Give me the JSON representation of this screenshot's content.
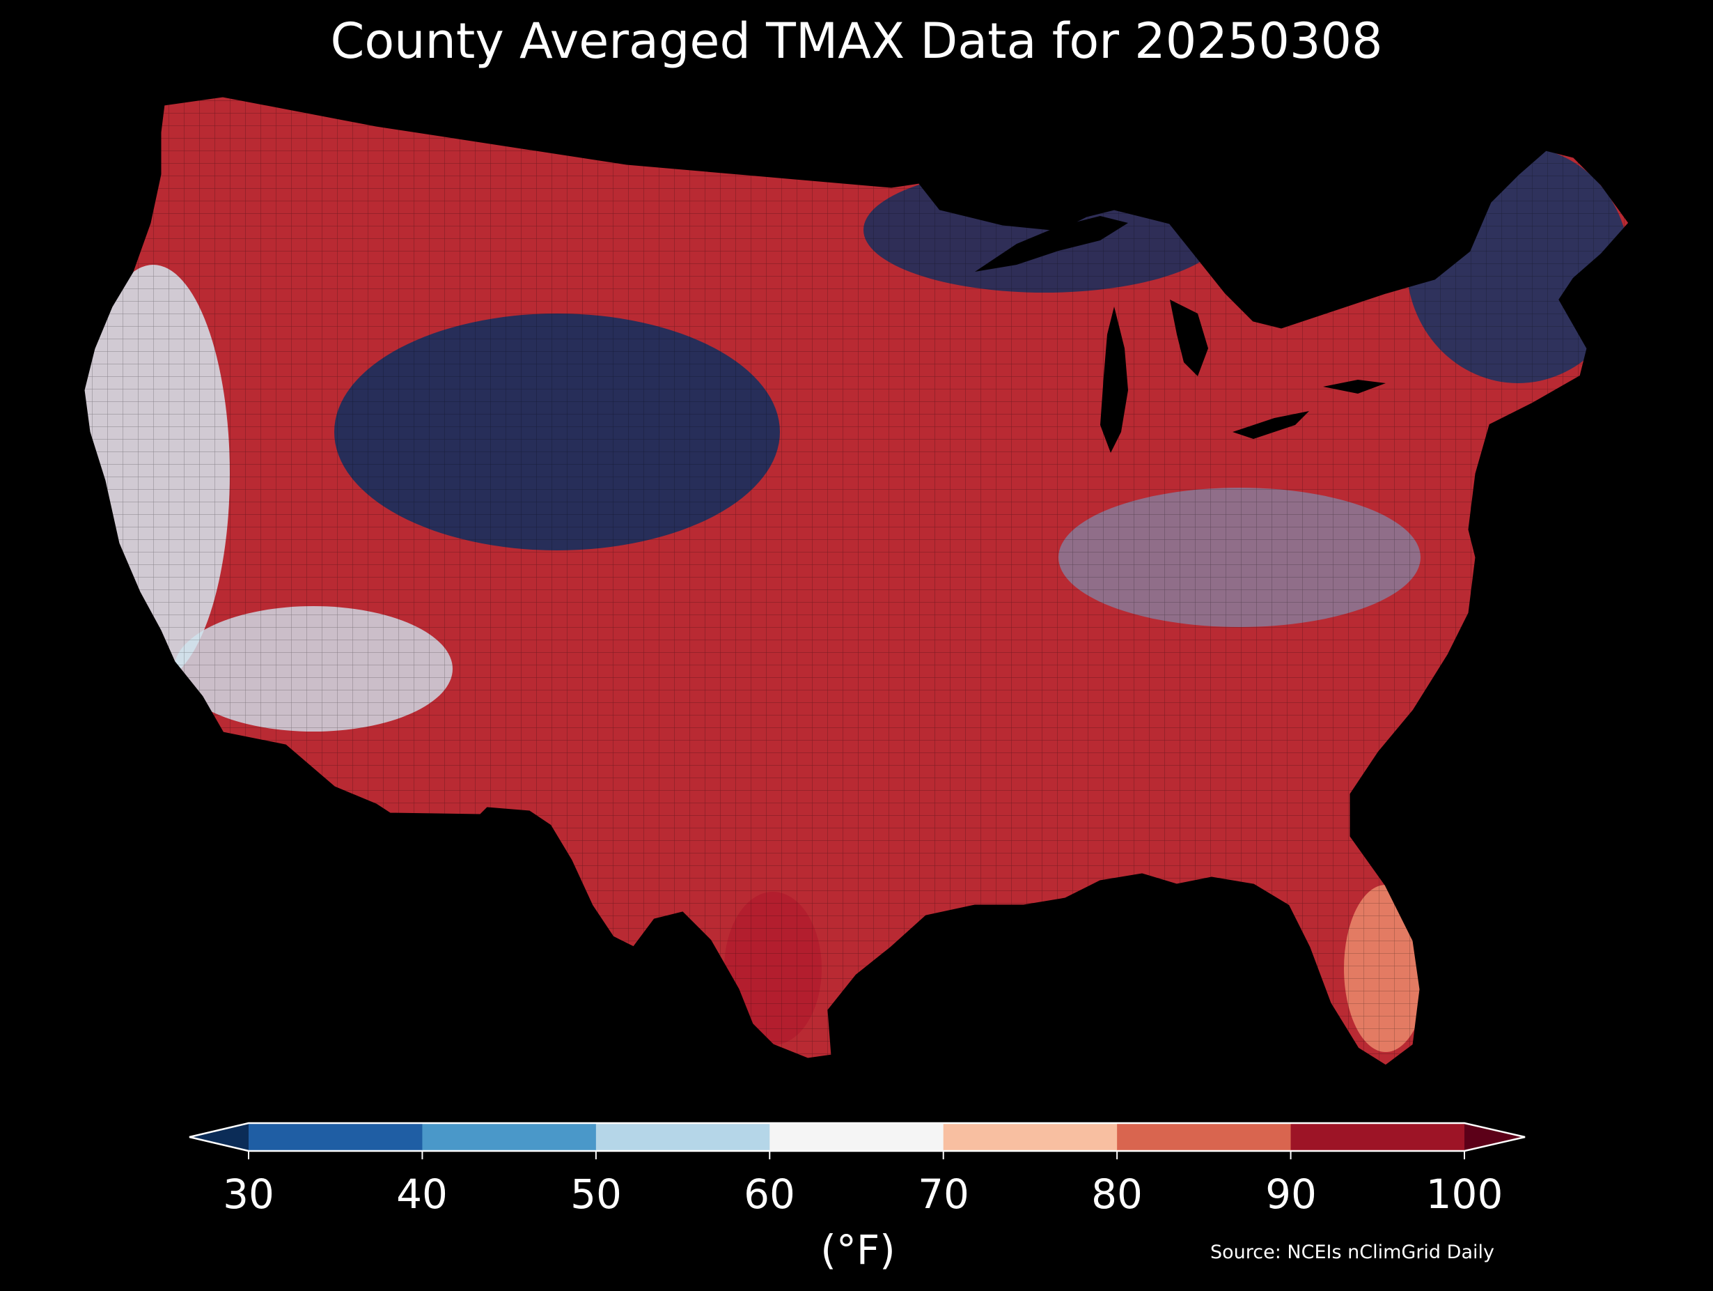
{
  "title": "County Averaged TMAX Data for 20250308",
  "colorbar": {
    "ticks": [
      "30",
      "40",
      "50",
      "60",
      "70",
      "80",
      "90",
      "100"
    ],
    "bins": [
      {
        "range": "<30",
        "color": "#0b2c57"
      },
      {
        "range": "30-40",
        "color": "#1f5ea4"
      },
      {
        "range": "40-50",
        "color": "#4a98c9"
      },
      {
        "range": "50-60",
        "color": "#b5d6e8"
      },
      {
        "range": "60-70",
        "color": "#f5f5f5"
      },
      {
        "range": "70-80",
        "color": "#f8bfa1"
      },
      {
        "range": "80-90",
        "color": "#d9654f"
      },
      {
        "range": "90-100",
        "color": "#9d1426"
      },
      {
        "range": ">100",
        "color": "#5c0018"
      }
    ],
    "unit_label": "(°F)"
  },
  "source": "Source: NCEIs nClimGrid Daily"
}
